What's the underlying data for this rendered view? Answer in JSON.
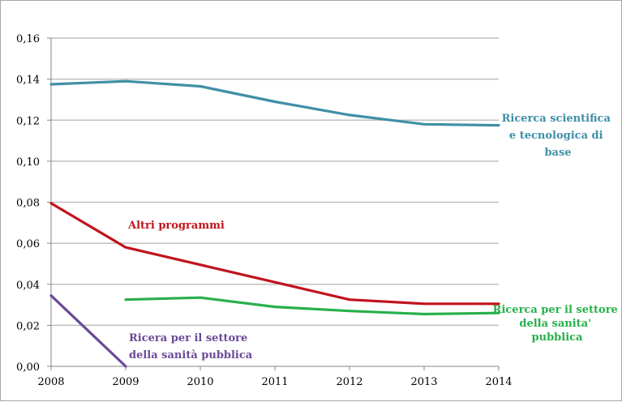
{
  "chart_data": {
    "type": "line",
    "x": [
      2008,
      2009,
      2010,
      2011,
      2012,
      2013,
      2014
    ],
    "ylim": [
      0,
      0.16
    ],
    "xlabel": "",
    "ylabel": "",
    "grid": true,
    "y_ticks": [
      "0,00",
      "0,02",
      "0,04",
      "0,06",
      "0,08",
      "0,10",
      "0,12",
      "0,14",
      "0,16"
    ],
    "x_ticks": [
      "2008",
      "2009",
      "2010",
      "2011",
      "2012",
      "2013",
      "2014"
    ],
    "series": [
      {
        "key": "ricerca_base",
        "label_lines": [
          "Ricerca scientifica",
          "e tecnologica di",
          "base"
        ],
        "color": "#3f8fa6",
        "x": [
          2008,
          2009,
          2010,
          2011,
          2012,
          2013,
          2014
        ],
        "values": [
          0.1375,
          0.139,
          0.1365,
          0.129,
          0.1225,
          0.118,
          0.1175
        ]
      },
      {
        "key": "altri_programmi",
        "label_lines": [
          "Altri programmi"
        ],
        "color": "#c0141c",
        "x": [
          2008,
          2009,
          2010,
          2011,
          2012,
          2013,
          2014
        ],
        "values": [
          0.0795,
          0.058,
          0.0495,
          0.041,
          0.0325,
          0.0305,
          0.0305
        ]
      },
      {
        "key": "ricerca_sanita",
        "label_lines": [
          "Ricerca per il settore",
          "della sanita'",
          "pubblica"
        ],
        "color": "#27b04b",
        "x": [
          2009,
          2010,
          2011,
          2012,
          2013,
          2014
        ],
        "values": [
          0.0325,
          0.0335,
          0.029,
          0.027,
          0.0255,
          0.026
        ]
      },
      {
        "key": "ricera_sanita_viola",
        "label_lines": [
          "Ricera per il settore",
          "della sanità pubblica"
        ],
        "color": "#6a4a96",
        "x": [
          2008,
          2009
        ],
        "values": [
          0.0345,
          0.0
        ]
      }
    ]
  }
}
